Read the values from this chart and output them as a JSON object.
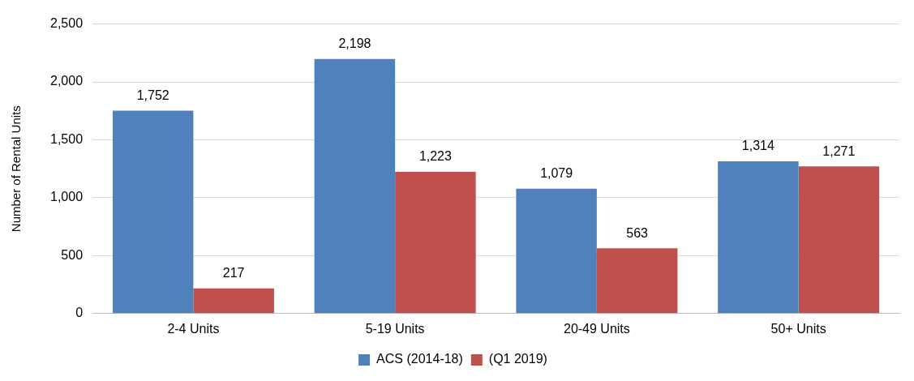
{
  "chart_data": {
    "type": "bar",
    "ylabel": "Number of Rental Units",
    "categories": [
      "2-4 Units",
      "5-19 Units",
      "20-49 Units",
      "50+ Units"
    ],
    "series": [
      {
        "name": "ACS (2014-18)",
        "color": "#4f81bd",
        "values": [
          1752,
          2198,
          1079,
          1314
        ],
        "value_labels": [
          "1,752",
          "2,198",
          "1,079",
          "1,314"
        ]
      },
      {
        "name": "(Q1 2019)",
        "color": "#c0504d",
        "values": [
          217,
          1223,
          563,
          1271
        ],
        "value_labels": [
          "217",
          "1,223",
          "563",
          "1,271"
        ]
      }
    ],
    "ylim": [
      0,
      2500
    ],
    "yticks": [
      0,
      500,
      {
        "value": 1000,
        "label": "1,000"
      },
      {
        "value": 1500,
        "label": "1,500"
      },
      {
        "value": 2000,
        "label": "2,000"
      },
      {
        "value": 2500,
        "label": "2,500"
      }
    ],
    "grid": "y",
    "legend": "bottom"
  }
}
